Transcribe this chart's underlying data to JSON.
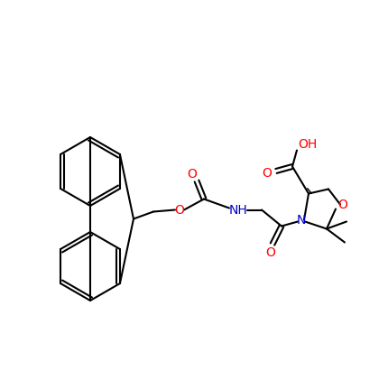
{
  "figsize": [
    4.31,
    4.21
  ],
  "dpi": 100,
  "background_color": "#ffffff",
  "bond_color": "#000000",
  "O_color": "#ff0000",
  "N_color": "#0000cd",
  "atoms": {
    "O": "#ff0000",
    "N": "#0000cd"
  }
}
